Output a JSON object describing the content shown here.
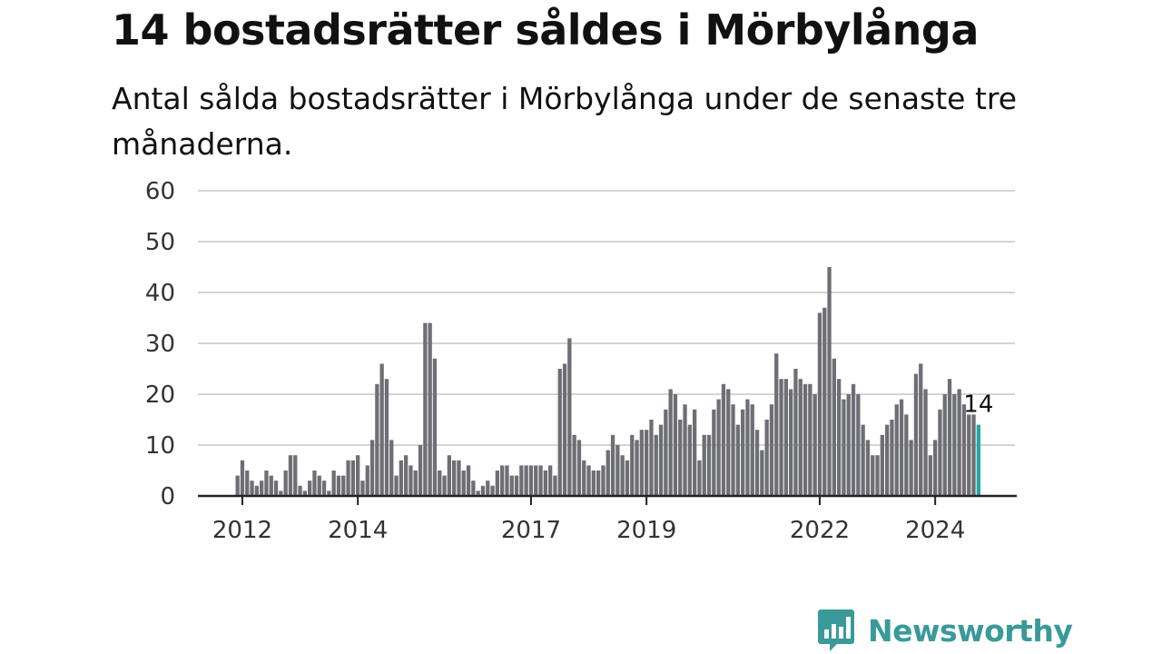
{
  "header": {
    "title": "14 bostadsrätter såldes i Mörbylånga",
    "subtitle": "Antal sålda bostadsrätter i Mörbylånga under de senaste tre månaderna."
  },
  "brand": {
    "name": "Newsworthy",
    "color": "#3a9a9a",
    "icon": "bar-chart-speech-bubble-icon"
  },
  "colors": {
    "bar": "#6e6e75",
    "highlight_bar": "#22a6a6",
    "grid": "#d4d4d4",
    "axis": "#222222"
  },
  "chart_data": {
    "type": "bar",
    "title": "",
    "xlabel": "",
    "ylabel": "",
    "ylim": [
      0,
      60
    ],
    "yticks": [
      0,
      10,
      20,
      30,
      40,
      50,
      60
    ],
    "grid": true,
    "start_month": "2011-12",
    "xtick_labels": [
      {
        "label": "2012",
        "month": "2012-01"
      },
      {
        "label": "2014",
        "month": "2014-01"
      },
      {
        "label": "2017",
        "month": "2017-01"
      },
      {
        "label": "2019",
        "month": "2019-01"
      },
      {
        "label": "2022",
        "month": "2022-01"
      },
      {
        "label": "2024",
        "month": "2024-01"
      }
    ],
    "values": [
      4,
      7,
      5,
      3,
      2,
      3,
      5,
      4,
      3,
      1,
      5,
      8,
      8,
      2,
      1,
      3,
      5,
      4,
      3,
      1,
      5,
      4,
      4,
      7,
      7,
      8,
      3,
      6,
      11,
      22,
      26,
      23,
      11,
      4,
      7,
      8,
      6,
      5,
      10,
      34,
      34,
      27,
      5,
      4,
      8,
      7,
      7,
      5,
      6,
      3,
      1,
      2,
      3,
      2,
      5,
      6,
      6,
      4,
      4,
      6,
      6,
      6,
      6,
      6,
      5,
      6,
      4,
      25,
      26,
      31,
      12,
      11,
      7,
      6,
      5,
      5,
      6,
      9,
      12,
      10,
      8,
      7,
      12,
      11,
      13,
      13,
      15,
      12,
      14,
      17,
      21,
      20,
      15,
      18,
      14,
      17,
      7,
      12,
      12,
      17,
      19,
      22,
      21,
      18,
      14,
      17,
      19,
      18,
      13,
      9,
      15,
      18,
      28,
      23,
      23,
      21,
      25,
      23,
      22,
      22,
      20,
      36,
      37,
      45,
      27,
      23,
      19,
      20,
      22,
      20,
      14,
      11,
      8,
      8,
      12,
      14,
      15,
      18,
      19,
      16,
      11,
      24,
      26,
      21,
      8,
      11,
      17,
      20,
      23,
      20,
      21,
      18,
      16,
      16,
      14
    ],
    "highlight_last": true,
    "data_label": "14"
  }
}
